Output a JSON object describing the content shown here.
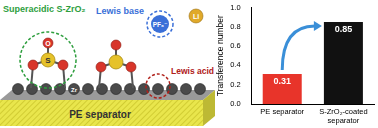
{
  "chart_data": {
    "type": "bar",
    "y_label": "Transference number",
    "categories": [
      "PE separator",
      "S-ZrO₂-coated separator"
    ],
    "values": [
      0.31,
      0.85
    ],
    "colors": [
      "#e8342a",
      "#111111"
    ],
    "ylim": [
      0,
      1
    ],
    "yticks": [
      {
        "value": 0,
        "label": "0.0"
      },
      0.2,
      0.4,
      0.6,
      0.8,
      {
        "value": 1,
        "label": "1.0"
      }
    ],
    "data_labels": true,
    "grid": false
  },
  "diagram": {
    "labels": {
      "superacid": "Superacidic S-ZrO₂",
      "lewis_base": "Lewis base",
      "lewis_acid": "Lewis acid",
      "separator": "PE separator"
    },
    "atoms": {
      "sulfur": "S",
      "oxygen": "O",
      "zirconium": "Zr",
      "lithium": "Li",
      "anion": "PF₆⁻"
    }
  }
}
